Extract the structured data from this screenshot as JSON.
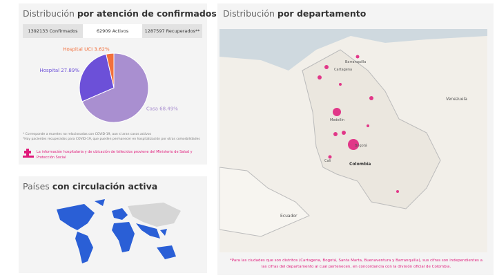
{
  "chart_data": {
    "type": "pie",
    "title_light": "Distribución",
    "title_bold": "por atención de confirmados",
    "categories": [
      "Casa",
      "Hospital",
      "Hospital UCI"
    ],
    "values": [
      68.49,
      27.89,
      3.62
    ],
    "value_labels": [
      "68.49%",
      "27.89%",
      "3.62%"
    ],
    "colors": [
      "#a98fd0",
      "#6c50d8",
      "#f2703c"
    ]
  },
  "tabs": [
    "1392133 Confirmados",
    "62909 Activos",
    "1287597 Recuperados**"
  ],
  "notes": [
    "* Corresponde a muertes no relacionadas con COVID-19, aun si aran casos activos",
    "*Hay pacientes recuperados para COVID-19, que pueden permanecer en hospitalización por otras comorbilidades"
  ],
  "source": "La información hospitalaria y de ubicación de fallecidos proviene del Ministerio de Salud y Protección Social",
  "countries_panel": {
    "title_light": "Países",
    "title_bold": "con circulación activa"
  },
  "map_panel": {
    "title_light": "Distribución",
    "title_bold": "por departamento",
    "labels": [
      "Venezuela",
      "Colombia",
      "Ecuador",
      "Medellín",
      "Bogotá",
      "Barranquilla",
      "Cartagena",
      "Cali"
    ],
    "note": "*Para las ciudades que son distritos (Cartagena, Bogotá, Santa Marta, Buenaventura y Barranquilla), sus cifras son independientes a las cifras del departamento al cual pertenecen, en concordancia con la división oficial de Colombia."
  }
}
